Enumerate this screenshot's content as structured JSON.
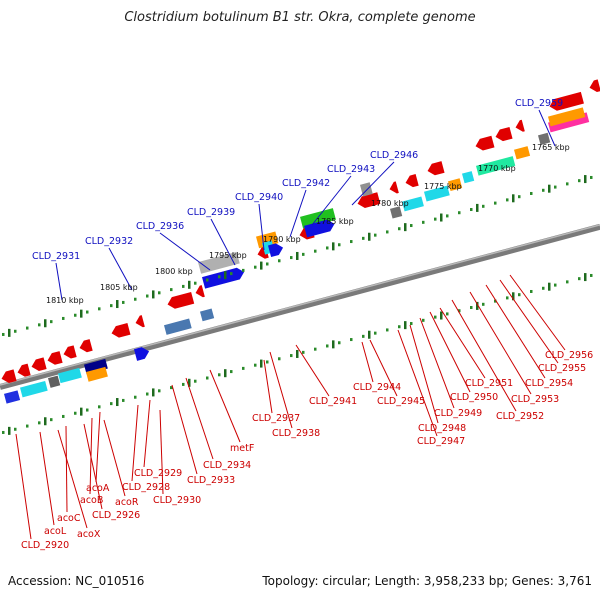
{
  "title": "Clostridium botulinum B1 str. Okra, complete genome",
  "footer": {
    "accession": "Accession: NC_010516",
    "summary": "Topology: circular; Length: 3,958,233 bp; Genes: 3,761"
  },
  "colors": {
    "forward_label": "#1010c0",
    "reverse_label": "#cc0000",
    "backbone": "#7a7a7a",
    "ruler": "#2a8a2a"
  },
  "scale_labels": [
    "1765 kbp",
    "1770 kbp",
    "1775 kbp",
    "1780 kbp",
    "1785 kbp",
    "1790 kbp",
    "1795 kbp",
    "1800 kbp",
    "1805 kbp",
    "1810 kbp"
  ],
  "forward_genes": [
    "CLD_2959",
    "CLD_2946",
    "CLD_2943",
    "CLD_2942",
    "CLD_2940",
    "CLD_2939",
    "CLD_2936",
    "CLD_2932",
    "CLD_2931"
  ],
  "reverse_genes_right": [
    "CLD_2956",
    "CLD_2955",
    "CLD_2954",
    "CLD_2953",
    "CLD_2952",
    "CLD_2951",
    "CLD_2950",
    "CLD_2949",
    "CLD_2948",
    "CLD_2947",
    "CLD_2945",
    "CLD_2944",
    "CLD_2941",
    "CLD_2938",
    "CLD_2937"
  ],
  "reverse_genes_left": [
    "metF",
    "CLD_2934",
    "CLD_2933",
    "CLD_2929",
    "CLD_2928",
    "CLD_2930",
    "acoA",
    "acoB",
    "acoR",
    "CLD_2926",
    "acoC",
    "acoX",
    "acoL",
    "CLD_2920"
  ]
}
